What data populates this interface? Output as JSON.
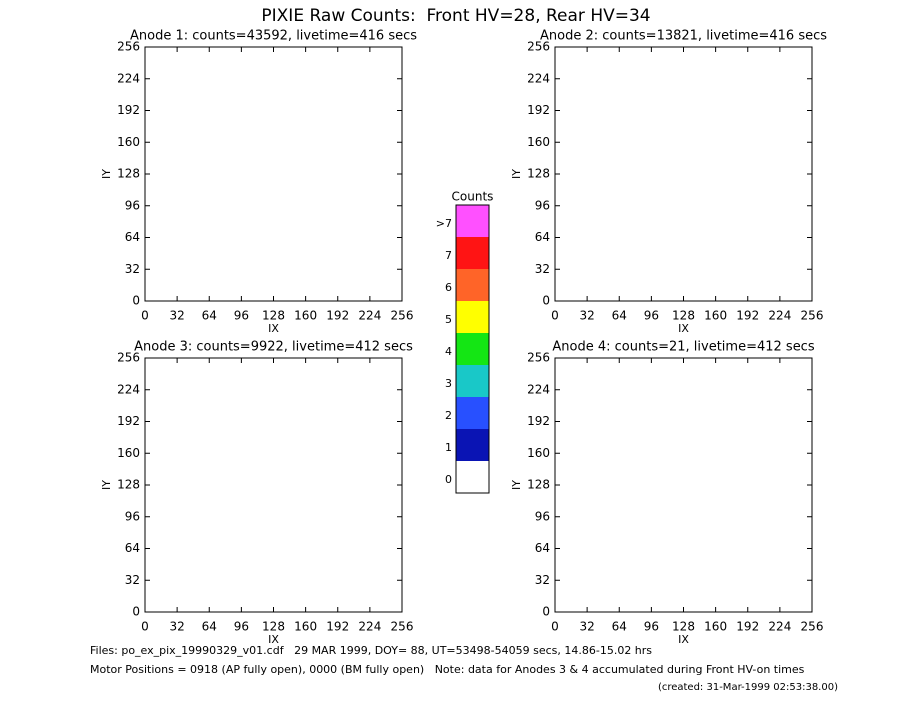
{
  "title": "PIXIE Raw Counts:  Front HV=28, Rear HV=34",
  "chart_data": [
    {
      "type": "heatmap",
      "title": "Anode 1: counts=43592, livetime=416 secs",
      "xlabel": "IX",
      "ylabel": "IY",
      "xlim": [
        0,
        256
      ],
      "ylim": [
        0,
        256
      ],
      "xticks": [
        0,
        32,
        64,
        96,
        128,
        160,
        192,
        224,
        256
      ],
      "yticks": [
        0,
        32,
        64,
        96,
        128,
        160,
        192,
        224,
        256
      ]
    },
    {
      "type": "heatmap",
      "title": "Anode 2: counts=13821, livetime=416 secs",
      "xlabel": "IX",
      "ylabel": "IY",
      "xlim": [
        0,
        256
      ],
      "ylim": [
        0,
        256
      ],
      "xticks": [
        0,
        32,
        64,
        96,
        128,
        160,
        192,
        224,
        256
      ],
      "yticks": [
        0,
        32,
        64,
        96,
        128,
        160,
        192,
        224,
        256
      ]
    },
    {
      "type": "heatmap",
      "title": "Anode 3: counts=9922, livetime=412 secs",
      "xlabel": "IX",
      "ylabel": "IY",
      "xlim": [
        0,
        256
      ],
      "ylim": [
        0,
        256
      ],
      "xticks": [
        0,
        32,
        64,
        96,
        128,
        160,
        192,
        224,
        256
      ],
      "yticks": [
        0,
        32,
        64,
        96,
        128,
        160,
        192,
        224,
        256
      ]
    },
    {
      "type": "heatmap",
      "title": "Anode 4: counts=21, livetime=412 secs",
      "xlabel": "IX",
      "ylabel": "IY",
      "xlim": [
        0,
        256
      ],
      "ylim": [
        0,
        256
      ],
      "xticks": [
        0,
        32,
        64,
        96,
        128,
        160,
        192,
        224,
        256
      ],
      "yticks": [
        0,
        32,
        64,
        96,
        128,
        160,
        192,
        224,
        256
      ]
    }
  ],
  "colorbar": {
    "title": "Counts",
    "labels": [
      "0",
      "1",
      "2",
      "3",
      "4",
      "5",
      "6",
      "7",
      ">7"
    ],
    "colors": [
      "#ffffff",
      "#0a14b4",
      "#2850ff",
      "#19c8c8",
      "#14e614",
      "#ffff00",
      "#ff6428",
      "#ff1414",
      "#ff50ff"
    ]
  },
  "footer": [
    "Files: po_ex_pix_19990329_v01.cdf   29 MAR 1999, DOY= 88, UT=53498-54059 secs, 14.86-15.02 hrs",
    "Motor Positions = 0918 (AP fully open), 0000 (BM fully open)   Note: data for Anodes 3 & 4 accumulated during Front HV-on times"
  ],
  "created": "(created: 31-Mar-1999 02:53:38.00)"
}
